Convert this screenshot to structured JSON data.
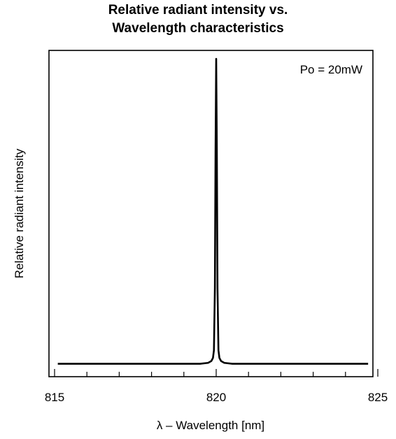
{
  "chart_data": {
    "type": "line",
    "title_lines": [
      "Relative radiant intensity vs.",
      "Wavelength characteristics"
    ],
    "xlabel": "λ – Wavelength [nm]",
    "ylabel": "Relative radiant intensity",
    "annotation": "Po = 20mW",
    "xlim": [
      815,
      825
    ],
    "ylim": [
      0,
      1
    ],
    "x_major_ticks": [
      815,
      820,
      825
    ],
    "x_minor_ticks": [
      816,
      817,
      818,
      819,
      821,
      822,
      823,
      824
    ],
    "x_tick_labels": [
      "815",
      "820",
      "825"
    ],
    "y_ticks_labeled": false,
    "grid": false,
    "series": [
      {
        "x": [
          815,
          819.5,
          819.75,
          819.85,
          819.9,
          819.93,
          819.96,
          819.98,
          820.0,
          820.02,
          820.04,
          820.07,
          820.1,
          820.15,
          820.25,
          820.5,
          825
        ],
        "y": [
          0.001,
          0.001,
          0.004,
          0.01,
          0.02,
          0.045,
          0.25,
          0.7,
          1.0,
          0.7,
          0.25,
          0.045,
          0.02,
          0.01,
          0.004,
          0.001,
          0.001
        ]
      }
    ],
    "data_range": [
      815.1,
      824.7
    ],
    "colors": {
      "line": "#000000",
      "axis": "#000000"
    }
  }
}
